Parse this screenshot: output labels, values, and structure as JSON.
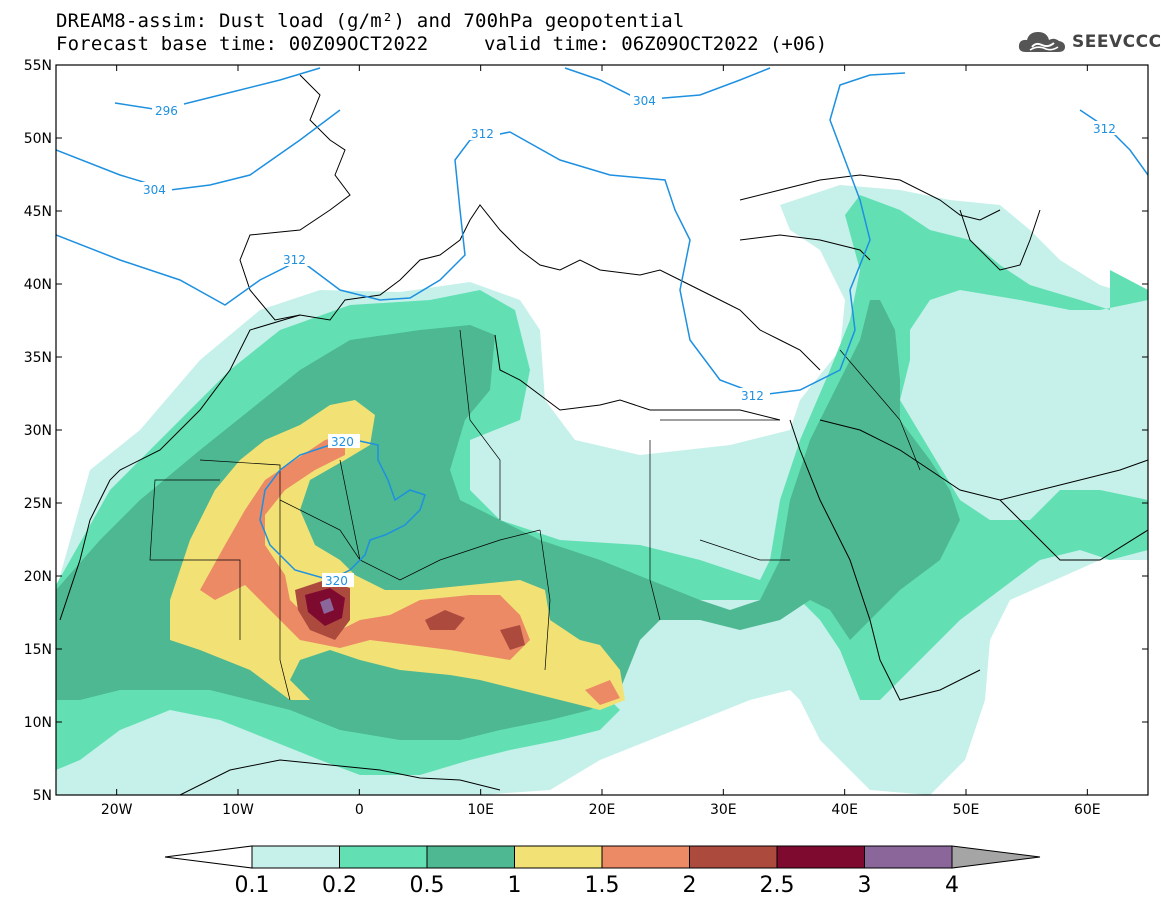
{
  "header": {
    "title": "DREAM8-assim: Dust load (g/m²) and 700hPa geopotential",
    "base_time": "Forecast base time: 00Z09OCT2022",
    "valid_time": "valid time: 06Z09OCT2022 (+06)"
  },
  "logo": {
    "text": "SEEVCCC",
    "icon": "cloud-icon"
  },
  "axes": {
    "lat_labels": [
      "55N",
      "50N",
      "45N",
      "40N",
      "35N",
      "30N",
      "25N",
      "20N",
      "15N",
      "10N",
      "5N"
    ],
    "lon_labels": [
      "20W",
      "10W",
      "0",
      "10E",
      "20E",
      "30E",
      "40E",
      "50E",
      "60E"
    ]
  },
  "contours": {
    "labels": [
      "296",
      "304",
      "304",
      "312",
      "312",
      "312",
      "312",
      "320",
      "320"
    ],
    "color": "#1e90e0"
  },
  "colorbar": {
    "labels": [
      "0.1",
      "0.2",
      "0.5",
      "1",
      "1.5",
      "2",
      "2.5",
      "3",
      "4"
    ],
    "colors": [
      "#c6f1ea",
      "#62e0b4",
      "#4db891",
      "#f2e276",
      "#ec8a66",
      "#ac4a3e",
      "#7e0a30",
      "#8a669a"
    ]
  },
  "chart_data": {
    "type": "heatmap",
    "title": "DREAM8-assim: Dust load (g/m²) and 700hPa geopotential",
    "levels": [
      0.1,
      0.2,
      0.5,
      1,
      1.5,
      2,
      2.5,
      3,
      4
    ],
    "geopotential_contours": [
      296,
      304,
      312,
      320
    ],
    "xlim": [
      -25,
      65
    ],
    "ylim": [
      5,
      55
    ]
  }
}
